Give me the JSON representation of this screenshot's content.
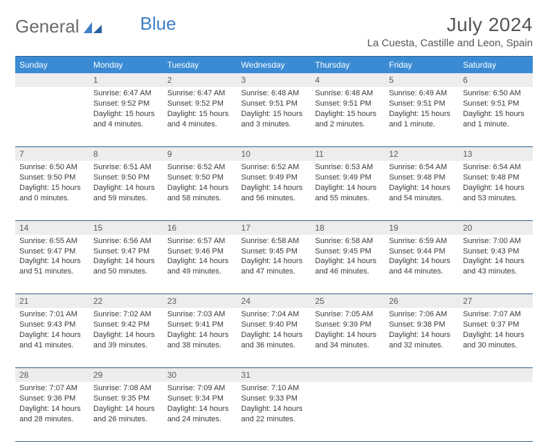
{
  "logo": {
    "part1": "General",
    "part2": "Blue"
  },
  "title": "July 2024",
  "location": "La Cuesta, Castille and Leon, Spain",
  "colors": {
    "header_bg": "#3b8bd4",
    "header_border": "#2e5d8a",
    "daynum_bg": "#ededed",
    "text": "#3a3a3a",
    "logo_gray": "#6b6b6b",
    "logo_blue": "#3b7fc4"
  },
  "day_headers": [
    "Sunday",
    "Monday",
    "Tuesday",
    "Wednesday",
    "Thursday",
    "Friday",
    "Saturday"
  ],
  "weeks": [
    [
      null,
      {
        "n": "1",
        "sr": "6:47 AM",
        "ss": "9:52 PM",
        "d": "15 hours and 4 minutes."
      },
      {
        "n": "2",
        "sr": "6:47 AM",
        "ss": "9:52 PM",
        "d": "15 hours and 4 minutes."
      },
      {
        "n": "3",
        "sr": "6:48 AM",
        "ss": "9:51 PM",
        "d": "15 hours and 3 minutes."
      },
      {
        "n": "4",
        "sr": "6:48 AM",
        "ss": "9:51 PM",
        "d": "15 hours and 2 minutes."
      },
      {
        "n": "5",
        "sr": "6:49 AM",
        "ss": "9:51 PM",
        "d": "15 hours and 1 minute."
      },
      {
        "n": "6",
        "sr": "6:50 AM",
        "ss": "9:51 PM",
        "d": "15 hours and 1 minute."
      }
    ],
    [
      {
        "n": "7",
        "sr": "6:50 AM",
        "ss": "9:50 PM",
        "d": "15 hours and 0 minutes."
      },
      {
        "n": "8",
        "sr": "6:51 AM",
        "ss": "9:50 PM",
        "d": "14 hours and 59 minutes."
      },
      {
        "n": "9",
        "sr": "6:52 AM",
        "ss": "9:50 PM",
        "d": "14 hours and 58 minutes."
      },
      {
        "n": "10",
        "sr": "6:52 AM",
        "ss": "9:49 PM",
        "d": "14 hours and 56 minutes."
      },
      {
        "n": "11",
        "sr": "6:53 AM",
        "ss": "9:49 PM",
        "d": "14 hours and 55 minutes."
      },
      {
        "n": "12",
        "sr": "6:54 AM",
        "ss": "9:48 PM",
        "d": "14 hours and 54 minutes."
      },
      {
        "n": "13",
        "sr": "6:54 AM",
        "ss": "9:48 PM",
        "d": "14 hours and 53 minutes."
      }
    ],
    [
      {
        "n": "14",
        "sr": "6:55 AM",
        "ss": "9:47 PM",
        "d": "14 hours and 51 minutes."
      },
      {
        "n": "15",
        "sr": "6:56 AM",
        "ss": "9:47 PM",
        "d": "14 hours and 50 minutes."
      },
      {
        "n": "16",
        "sr": "6:57 AM",
        "ss": "9:46 PM",
        "d": "14 hours and 49 minutes."
      },
      {
        "n": "17",
        "sr": "6:58 AM",
        "ss": "9:45 PM",
        "d": "14 hours and 47 minutes."
      },
      {
        "n": "18",
        "sr": "6:58 AM",
        "ss": "9:45 PM",
        "d": "14 hours and 46 minutes."
      },
      {
        "n": "19",
        "sr": "6:59 AM",
        "ss": "9:44 PM",
        "d": "14 hours and 44 minutes."
      },
      {
        "n": "20",
        "sr": "7:00 AM",
        "ss": "9:43 PM",
        "d": "14 hours and 43 minutes."
      }
    ],
    [
      {
        "n": "21",
        "sr": "7:01 AM",
        "ss": "9:43 PM",
        "d": "14 hours and 41 minutes."
      },
      {
        "n": "22",
        "sr": "7:02 AM",
        "ss": "9:42 PM",
        "d": "14 hours and 39 minutes."
      },
      {
        "n": "23",
        "sr": "7:03 AM",
        "ss": "9:41 PM",
        "d": "14 hours and 38 minutes."
      },
      {
        "n": "24",
        "sr": "7:04 AM",
        "ss": "9:40 PM",
        "d": "14 hours and 36 minutes."
      },
      {
        "n": "25",
        "sr": "7:05 AM",
        "ss": "9:39 PM",
        "d": "14 hours and 34 minutes."
      },
      {
        "n": "26",
        "sr": "7:06 AM",
        "ss": "9:38 PM",
        "d": "14 hours and 32 minutes."
      },
      {
        "n": "27",
        "sr": "7:07 AM",
        "ss": "9:37 PM",
        "d": "14 hours and 30 minutes."
      }
    ],
    [
      {
        "n": "28",
        "sr": "7:07 AM",
        "ss": "9:36 PM",
        "d": "14 hours and 28 minutes."
      },
      {
        "n": "29",
        "sr": "7:08 AM",
        "ss": "9:35 PM",
        "d": "14 hours and 26 minutes."
      },
      {
        "n": "30",
        "sr": "7:09 AM",
        "ss": "9:34 PM",
        "d": "14 hours and 24 minutes."
      },
      {
        "n": "31",
        "sr": "7:10 AM",
        "ss": "9:33 PM",
        "d": "14 hours and 22 minutes."
      },
      null,
      null,
      null
    ]
  ],
  "labels": {
    "sunrise": "Sunrise:",
    "sunset": "Sunset:",
    "daylight": "Daylight:"
  }
}
